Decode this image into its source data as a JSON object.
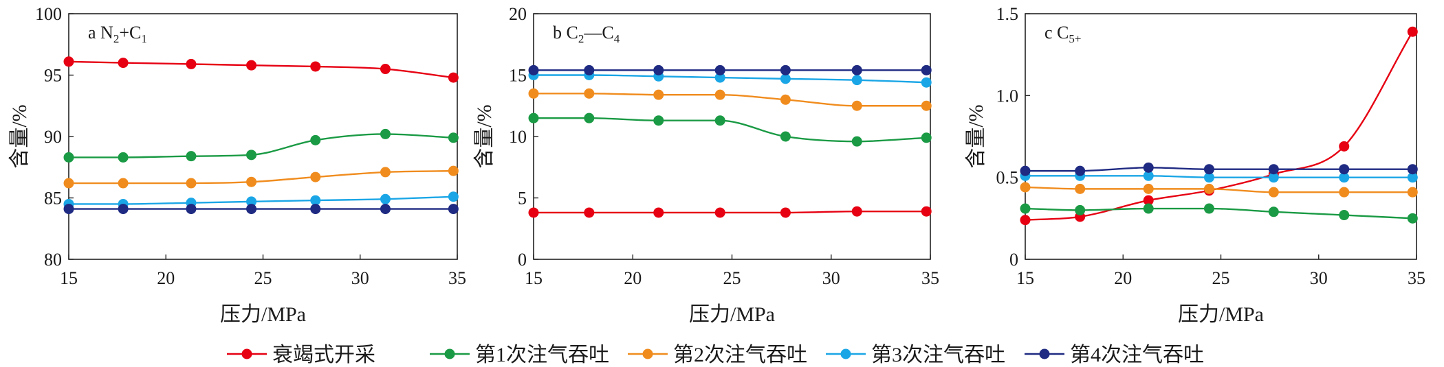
{
  "legend": [
    {
      "name": "衰竭式开采",
      "color": "#e60012"
    },
    {
      "name": "第1次注气吞吐",
      "color": "#1a9a44"
    },
    {
      "name": "第2次注气吞吐",
      "color": "#f08c1e"
    },
    {
      "name": "第3次注气吞吐",
      "color": "#1aa6e6"
    },
    {
      "name": "第4次注气吞吐",
      "color": "#1f2a82"
    }
  ],
  "chart_data": [
    {
      "type": "line",
      "panel": "a",
      "label_prefix": "a N",
      "label_sub1": "2",
      "label_mid": "+C",
      "label_sub2": "1",
      "xlabel": "压力/MPa",
      "ylabel": "含量/%",
      "xlim": [
        15,
        35
      ],
      "ylim": [
        80,
        100
      ],
      "xticks": [
        15,
        20,
        25,
        30,
        35
      ],
      "yticks": [
        80,
        85,
        90,
        95,
        100
      ],
      "x": [
        15,
        17.8,
        21.3,
        24.4,
        27.7,
        31.3,
        34.8
      ],
      "series": [
        {
          "name": "衰竭式开采",
          "color": "#e60012",
          "values": [
            96.1,
            96.0,
            95.9,
            95.8,
            95.7,
            95.5,
            94.8
          ]
        },
        {
          "name": "第1次注气吞吐",
          "color": "#1a9a44",
          "values": [
            88.3,
            88.3,
            88.4,
            88.5,
            89.7,
            90.2,
            89.9
          ]
        },
        {
          "name": "第2次注气吞吐",
          "color": "#f08c1e",
          "values": [
            86.2,
            86.2,
            86.2,
            86.3,
            86.7,
            87.1,
            87.2
          ]
        },
        {
          "name": "第3次注气吞吐",
          "color": "#1aa6e6",
          "values": [
            84.5,
            84.5,
            84.6,
            84.7,
            84.8,
            84.9,
            85.1
          ]
        },
        {
          "name": "第4次注气吞吐",
          "color": "#1f2a82",
          "values": [
            84.1,
            84.1,
            84.1,
            84.1,
            84.1,
            84.1,
            84.1
          ]
        }
      ]
    },
    {
      "type": "line",
      "panel": "b",
      "label_prefix": "b C",
      "label_sub1": "2",
      "label_mid": "—C",
      "label_sub2": "4",
      "xlabel": "压力/MPa",
      "ylabel": "含量/%",
      "xlim": [
        15,
        35
      ],
      "ylim": [
        0,
        20
      ],
      "xticks": [
        15,
        20,
        25,
        30,
        35
      ],
      "yticks": [
        0,
        5,
        10,
        15,
        20
      ],
      "x": [
        15,
        17.8,
        21.3,
        24.4,
        27.7,
        31.3,
        34.8
      ],
      "series": [
        {
          "name": "衰竭式开采",
          "color": "#e60012",
          "values": [
            3.8,
            3.8,
            3.8,
            3.8,
            3.8,
            3.9,
            3.9
          ]
        },
        {
          "name": "第1次注气吞吐",
          "color": "#1a9a44",
          "values": [
            11.5,
            11.5,
            11.3,
            11.3,
            10.0,
            9.6,
            9.9
          ]
        },
        {
          "name": "第2次注气吞吐",
          "color": "#f08c1e",
          "values": [
            13.5,
            13.5,
            13.4,
            13.4,
            13.0,
            12.5,
            12.5
          ]
        },
        {
          "name": "第3次注气吞吐",
          "color": "#1aa6e6",
          "values": [
            15.0,
            15.0,
            14.9,
            14.8,
            14.7,
            14.6,
            14.4
          ]
        },
        {
          "name": "第4次注气吞吐",
          "color": "#1f2a82",
          "values": [
            15.4,
            15.4,
            15.4,
            15.4,
            15.4,
            15.4,
            15.4
          ]
        }
      ]
    },
    {
      "type": "line",
      "panel": "c",
      "label_prefix": "c C",
      "label_sub1": "5+",
      "label_mid": "",
      "label_sub2": "",
      "xlabel": "压力/MPa",
      "ylabel": "含量/%",
      "xlim": [
        15,
        35
      ],
      "ylim": [
        0,
        1.5
      ],
      "xticks": [
        15,
        20,
        25,
        30,
        35
      ],
      "yticks": [
        0,
        0.5,
        1.0,
        1.5
      ],
      "ytick_labels": [
        "0",
        "0.5",
        "1.0",
        "1.5"
      ],
      "x": [
        15,
        17.8,
        21.3,
        24.4,
        27.7,
        31.3,
        34.8
      ],
      "series": [
        {
          "name": "衰竭式开采",
          "color": "#e60012",
          "values": [
            0.24,
            0.26,
            0.36,
            0.42,
            0.52,
            0.69,
            1.39
          ]
        },
        {
          "name": "第1次注气吞吐",
          "color": "#1a9a44",
          "values": [
            0.31,
            0.3,
            0.31,
            0.31,
            0.29,
            0.27,
            0.25
          ]
        },
        {
          "name": "第2次注气吞吐",
          "color": "#f08c1e",
          "values": [
            0.44,
            0.43,
            0.43,
            0.43,
            0.41,
            0.41,
            0.41
          ]
        },
        {
          "name": "第3次注气吞吐",
          "color": "#1aa6e6",
          "values": [
            0.51,
            0.51,
            0.51,
            0.5,
            0.5,
            0.5,
            0.5
          ]
        },
        {
          "name": "第4次注气吞吐",
          "color": "#1f2a82",
          "values": [
            0.54,
            0.54,
            0.56,
            0.55,
            0.55,
            0.55,
            0.55
          ]
        }
      ]
    }
  ]
}
